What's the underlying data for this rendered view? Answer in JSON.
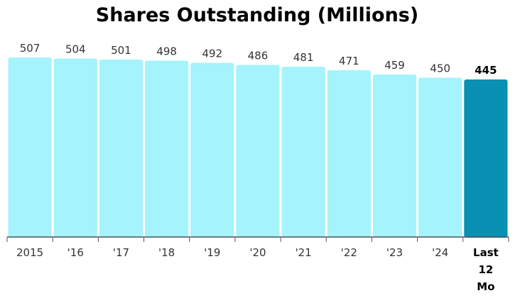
{
  "chart_data": {
    "type": "bar",
    "title": "Shares Outstanding (Millions)",
    "categories": [
      "2015",
      "'16",
      "'17",
      "'18",
      "'19",
      "'20",
      "'21",
      "'22",
      "'23",
      "'24",
      "Last 12 Mo"
    ],
    "values": [
      507,
      504,
      501,
      498,
      492,
      486,
      481,
      471,
      459,
      450,
      445
    ],
    "highlight_index": 10,
    "ylim": [
      0,
      507
    ],
    "grid": false,
    "colors": {
      "bar": "#a5f3fc",
      "bar_highlight": "#0891b2",
      "axis": "#555555"
    }
  }
}
